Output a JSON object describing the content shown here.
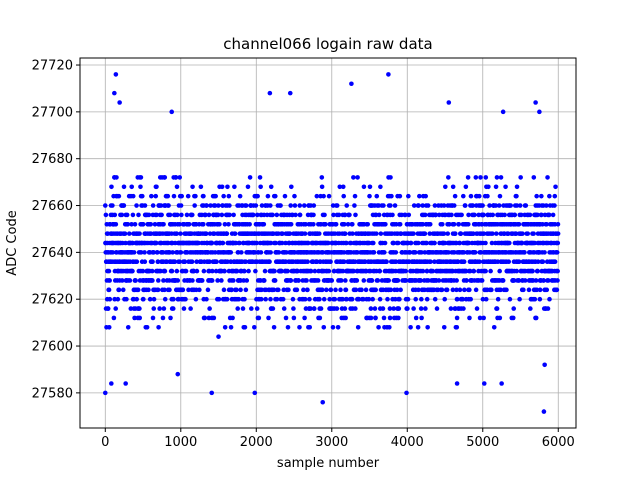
{
  "chart_data": {
    "type": "scatter",
    "title": "channel066 logain raw data",
    "xlabel": "sample number",
    "ylabel": "ADC Code",
    "xlim": [
      -335,
      6235
    ],
    "ylim": [
      27565,
      27723
    ],
    "xticks": [
      0,
      1000,
      2000,
      3000,
      4000,
      5000,
      6000
    ],
    "yticks": [
      27580,
      27600,
      27620,
      27640,
      27660,
      27680,
      27700,
      27720
    ],
    "grid": true,
    "legend": "none",
    "marker_color": "#0000ff",
    "series": [
      {
        "sample_count": 6000,
        "code_step": 4,
        "typical_range": [
          27608,
          27672
        ],
        "outliers": [
          [
            0,
            27580
          ],
          [
            80,
            27584
          ],
          [
            140,
            27716
          ],
          [
            120,
            27708
          ],
          [
            190,
            27704
          ],
          [
            270,
            27584
          ],
          [
            880,
            27700
          ],
          [
            960,
            27588
          ],
          [
            1410,
            27580
          ],
          [
            1980,
            27580
          ],
          [
            2180,
            27708
          ],
          [
            2450,
            27708
          ],
          [
            2880,
            27576
          ],
          [
            3260,
            27712
          ],
          [
            3750,
            27716
          ],
          [
            3990,
            27580
          ],
          [
            4550,
            27704
          ],
          [
            4660,
            27584
          ],
          [
            5020,
            27584
          ],
          [
            5250,
            27584
          ],
          [
            5270,
            27700
          ],
          [
            5700,
            27704
          ],
          [
            5750,
            27700
          ],
          [
            5810,
            27572
          ],
          [
            5820,
            27592
          ]
        ]
      }
    ]
  }
}
